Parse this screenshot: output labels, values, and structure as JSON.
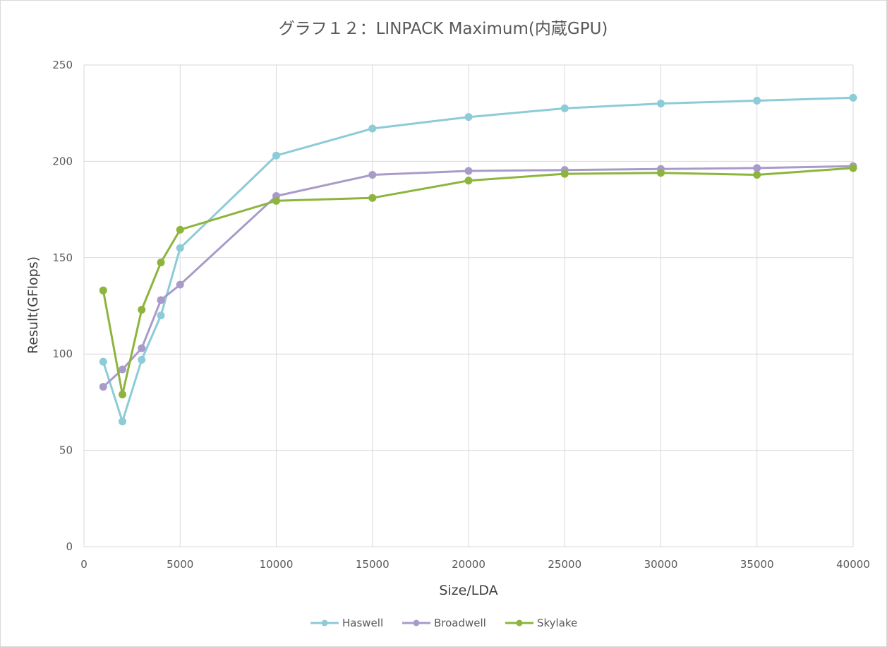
{
  "chart_data": {
    "type": "line",
    "title": "グラフ１２：LINPACK Maximum(内蔵GPU)",
    "xlabel": "Size/LDA",
    "ylabel": "Result(GFlops)",
    "xlim": [
      0,
      40000
    ],
    "ylim": [
      0,
      250
    ],
    "xticks": [
      0,
      5000,
      10000,
      15000,
      20000,
      25000,
      30000,
      35000,
      40000
    ],
    "yticks": [
      0,
      50,
      100,
      150,
      200,
      250
    ],
    "grid": true,
    "legend_position": "bottom",
    "x": [
      1000,
      2000,
      3000,
      4000,
      5000,
      10000,
      15000,
      20000,
      25000,
      30000,
      35000,
      40000
    ],
    "series": [
      {
        "name": "Haswell",
        "color": "#8ccbd8",
        "values": [
          96,
          65,
          97,
          120,
          155,
          203,
          217,
          223,
          227.5,
          230,
          231.5,
          233
        ]
      },
      {
        "name": "Broadwell",
        "color": "#a99bc9",
        "values": [
          83,
          92,
          103,
          128,
          136,
          182,
          193,
          195,
          195.5,
          196,
          196.5,
          197.5
        ]
      },
      {
        "name": "Skylake",
        "color": "#8db43c",
        "values": [
          133,
          79,
          123,
          147.5,
          164.5,
          179.5,
          181,
          190,
          193.5,
          194,
          193,
          196.5
        ]
      }
    ]
  }
}
